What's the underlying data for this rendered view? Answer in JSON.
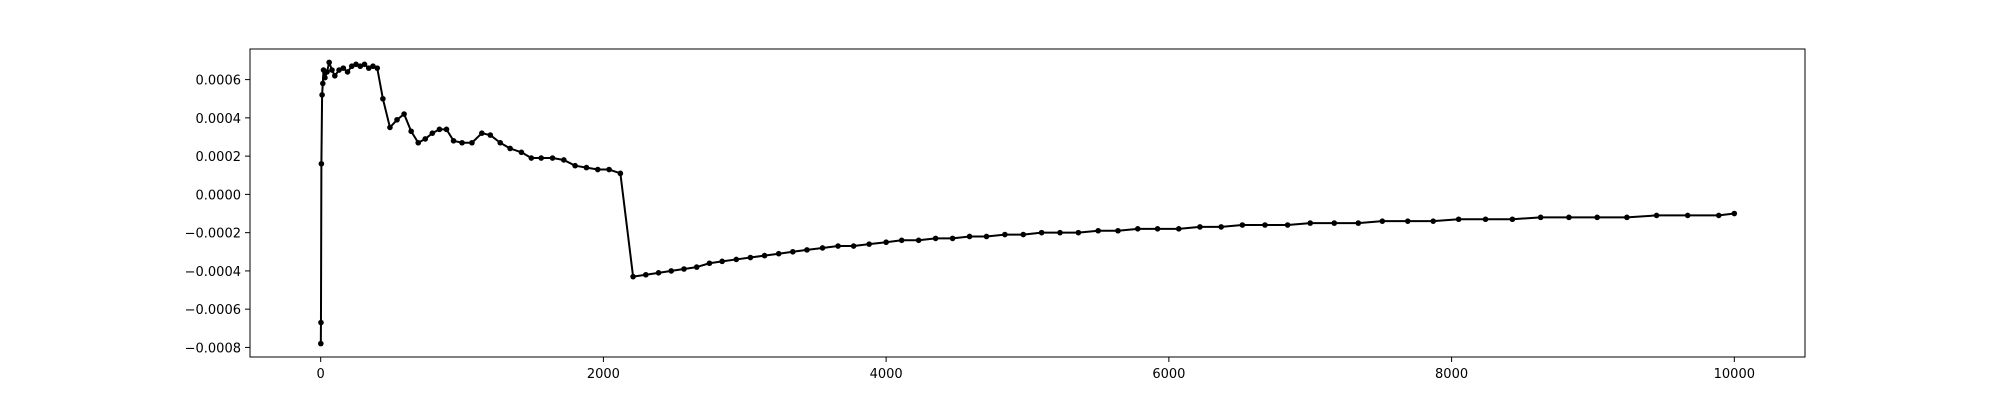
{
  "chart_data": {
    "type": "line",
    "title": "",
    "xlabel": "",
    "ylabel": "",
    "xlim": [
      -500,
      10500
    ],
    "ylim": [
      -0.00085,
      0.00076
    ],
    "grid": false,
    "xticks": [
      0,
      2000,
      4000,
      6000,
      8000,
      10000
    ],
    "xtick_labels": [
      "0",
      "2000",
      "4000",
      "6000",
      "8000",
      "10000"
    ],
    "yticks": [
      -0.0008,
      -0.0006,
      -0.0004,
      -0.0002,
      0.0,
      0.0002,
      0.0004,
      0.0006
    ],
    "ytick_labels": [
      "−0.0008",
      "−0.0006",
      "−0.0004",
      "−0.0002",
      "0.0000",
      "0.0002",
      "0.0004",
      "0.0006"
    ],
    "series": [
      {
        "color": "#000000",
        "marker": "circle",
        "x": [
          1,
          2,
          5,
          10,
          15,
          20,
          30,
          45,
          60,
          80,
          100,
          130,
          160,
          190,
          220,
          250,
          280,
          310,
          340,
          370,
          400,
          440,
          490,
          540,
          590,
          640,
          690,
          740,
          790,
          840,
          890,
          940,
          1000,
          1070,
          1140,
          1200,
          1270,
          1340,
          1420,
          1490,
          1560,
          1640,
          1720,
          1800,
          1880,
          1960,
          2040,
          2120,
          2210,
          2300,
          2390,
          2480,
          2570,
          2660,
          2750,
          2840,
          2940,
          3040,
          3140,
          3240,
          3340,
          3440,
          3550,
          3660,
          3770,
          3880,
          4000,
          4110,
          4230,
          4350,
          4470,
          4590,
          4710,
          4840,
          4970,
          5100,
          5230,
          5360,
          5500,
          5640,
          5780,
          5920,
          6070,
          6220,
          6370,
          6520,
          6680,
          6840,
          7000,
          7170,
          7340,
          7510,
          7690,
          7870,
          8050,
          8240,
          8430,
          8630,
          8830,
          9030,
          9240,
          9450,
          9670,
          9890,
          10000
        ],
        "y": [
          -0.00078,
          -0.00067,
          0.00016,
          0.00052,
          0.00058,
          0.00065,
          0.00061,
          0.00064,
          0.00069,
          0.00065,
          0.00062,
          0.00065,
          0.00066,
          0.00064,
          0.00067,
          0.00068,
          0.00067,
          0.00068,
          0.00066,
          0.00067,
          0.00066,
          0.0005,
          0.00035,
          0.00039,
          0.00042,
          0.00033,
          0.00027,
          0.00029,
          0.00032,
          0.00034,
          0.00034,
          0.00028,
          0.00027,
          0.00027,
          0.00032,
          0.00031,
          0.00027,
          0.00024,
          0.00022,
          0.00019,
          0.00019,
          0.00019,
          0.00018,
          0.00015,
          0.00014,
          0.00013,
          0.00013,
          0.00011,
          -0.00043,
          -0.00042,
          -0.00041,
          -0.0004,
          -0.00039,
          -0.00038,
          -0.00036,
          -0.00035,
          -0.00034,
          -0.00033,
          -0.00032,
          -0.00031,
          -0.0003,
          -0.00029,
          -0.00028,
          -0.00027,
          -0.00027,
          -0.00026,
          -0.00025,
          -0.00024,
          -0.00024,
          -0.00023,
          -0.00023,
          -0.00022,
          -0.00022,
          -0.00021,
          -0.00021,
          -0.0002,
          -0.0002,
          -0.0002,
          -0.00019,
          -0.00019,
          -0.00018,
          -0.00018,
          -0.00018,
          -0.00017,
          -0.00017,
          -0.00016,
          -0.00016,
          -0.00016,
          -0.00015,
          -0.00015,
          -0.00015,
          -0.00014,
          -0.00014,
          -0.00014,
          -0.00013,
          -0.00013,
          -0.00013,
          -0.00012,
          -0.00012,
          -0.00012,
          -0.00012,
          -0.00011,
          -0.00011,
          -0.00011,
          -0.0001
        ]
      }
    ]
  }
}
